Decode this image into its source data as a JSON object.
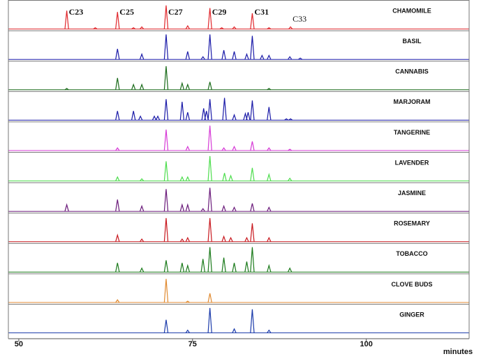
{
  "chart_data": {
    "type": "line",
    "x_label": "minutes",
    "xlim": [
      48.5,
      114.8
    ],
    "xticks": [
      50,
      75,
      100
    ],
    "ylim": [
      0,
      100
    ],
    "annotations": [
      {
        "text": "C23",
        "x": 56.9,
        "bold": true
      },
      {
        "text": "C25",
        "x": 64.2,
        "bold": true
      },
      {
        "text": "C27",
        "x": 71.2,
        "bold": true
      },
      {
        "text": "C29",
        "x": 77.5,
        "bold": true
      },
      {
        "text": "C31",
        "x": 83.6,
        "bold": true
      },
      {
        "text": "C33",
        "x": 89.1,
        "bold": false
      }
    ],
    "series": [
      {
        "name": "CHAMOMILE",
        "color": "#e0262b",
        "x": [
          56.9,
          61.0,
          64.2,
          66.5,
          67.7,
          71.2,
          74.3,
          77.5,
          79.2,
          81.0,
          83.6,
          86.0,
          89.1
        ],
        "values": [
          70,
          5,
          65,
          5,
          8,
          90,
          12,
          80,
          5,
          8,
          60,
          5,
          8
        ]
      },
      {
        "name": "BASIL",
        "color": "#1a1aa8",
        "x": [
          64.2,
          67.7,
          71.2,
          74.3,
          76.5,
          77.5,
          79.5,
          81.0,
          82.8,
          83.6,
          85.0,
          86.0,
          89.0,
          90.5
        ],
        "values": [
          40,
          20,
          95,
          30,
          10,
          95,
          35,
          30,
          20,
          90,
          15,
          15,
          10,
          5
        ]
      },
      {
        "name": "CANNABIS",
        "color": "#1a6b1a",
        "x": [
          56.9,
          64.2,
          66.5,
          67.7,
          71.2,
          73.5,
          74.3,
          77.5,
          86.0
        ],
        "values": [
          5,
          45,
          20,
          20,
          90,
          25,
          20,
          30,
          5
        ]
      },
      {
        "name": "MARJORAM",
        "color": "#1a1aa8",
        "x": [
          64.2,
          66.5,
          67.5,
          69.5,
          70.0,
          71.2,
          73.5,
          74.3,
          76.6,
          77.0,
          77.5,
          79.6,
          81.0,
          82.6,
          83.0,
          83.6,
          86.0,
          88.5,
          89.1
        ],
        "values": [
          35,
          35,
          15,
          15,
          15,
          80,
          70,
          30,
          45,
          35,
          80,
          85,
          20,
          25,
          30,
          75,
          50,
          5,
          5
        ]
      },
      {
        "name": "TANGERINE",
        "color": "#d63ad6",
        "x": [
          64.2,
          71.2,
          74.3,
          77.5,
          79.5,
          81.0,
          83.6,
          86.0,
          89.0
        ],
        "values": [
          10,
          80,
          15,
          95,
          10,
          15,
          35,
          10,
          5
        ]
      },
      {
        "name": "LAVENDER",
        "color": "#4ddd4d",
        "x": [
          64.2,
          67.7,
          71.2,
          73.5,
          74.3,
          77.5,
          79.6,
          80.5,
          83.6,
          86.0,
          89.0
        ],
        "values": [
          15,
          8,
          75,
          15,
          15,
          95,
          30,
          20,
          50,
          25,
          10
        ]
      },
      {
        "name": "JASMINE",
        "color": "#6a1a7a",
        "x": [
          56.9,
          64.2,
          67.7,
          71.2,
          73.5,
          74.3,
          76.5,
          77.5,
          79.5,
          81.0,
          83.6,
          86.0
        ],
        "values": [
          25,
          45,
          20,
          85,
          25,
          25,
          10,
          90,
          20,
          15,
          30,
          15
        ]
      },
      {
        "name": "ROSEMARY",
        "color": "#c8181e",
        "x": [
          64.2,
          67.7,
          71.2,
          73.5,
          74.3,
          77.5,
          79.5,
          80.5,
          82.8,
          83.6,
          86.0
        ],
        "values": [
          25,
          10,
          90,
          10,
          15,
          90,
          20,
          15,
          15,
          70,
          15
        ]
      },
      {
        "name": "TOBACCO",
        "color": "#1a7a1a",
        "x": [
          64.2,
          67.7,
          71.2,
          73.5,
          74.3,
          76.5,
          77.5,
          79.5,
          81.0,
          82.8,
          83.6,
          86.0,
          89.0
        ],
        "values": [
          35,
          15,
          45,
          35,
          25,
          50,
          95,
          55,
          35,
          40,
          95,
          25,
          15
        ]
      },
      {
        "name": "CLOVE BUDS",
        "color": "#e08a30",
        "x": [
          64.2,
          71.2,
          74.3,
          77.5
        ],
        "values": [
          10,
          90,
          5,
          35
        ]
      },
      {
        "name": "GINGER",
        "color": "#1a3aaa",
        "x": [
          71.2,
          74.3,
          77.5,
          81.0,
          83.6,
          86.0
        ],
        "values": [
          50,
          10,
          95,
          15,
          90,
          10
        ]
      }
    ]
  }
}
